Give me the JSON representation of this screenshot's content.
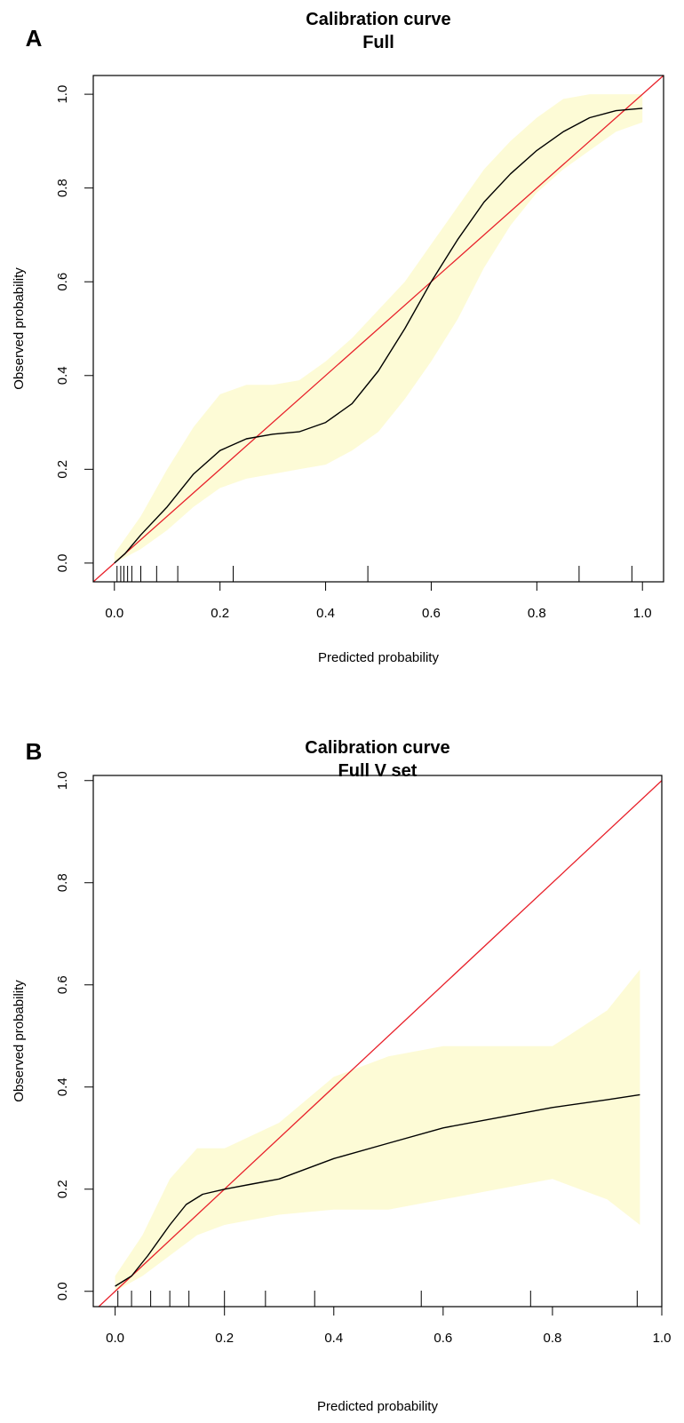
{
  "chart_data": [
    {
      "panel_label": "A",
      "type": "line",
      "title": "Calibration curve",
      "subtitle": "Full",
      "xlabel": "Predicted probability",
      "ylabel": "Observed probability",
      "xlim": [
        -0.04,
        1.04
      ],
      "ylim": [
        -0.04,
        1.04
      ],
      "x_ticks": [
        "0.0",
        "0.2",
        "0.4",
        "0.6",
        "0.8",
        "1.0"
      ],
      "y_ticks": [
        "0.0",
        "0.2",
        "0.4",
        "0.6",
        "0.8",
        "1.0"
      ],
      "grid": false,
      "colors": {
        "reference_line": "#e8202a",
        "calibration_curve": "#000000",
        "confidence_band": "#fdfbd6"
      },
      "reference_line": {
        "x": [
          -0.04,
          1.04
        ],
        "y": [
          -0.04,
          1.04
        ]
      },
      "calibration_curve": {
        "x": [
          0.0,
          0.02,
          0.05,
          0.1,
          0.15,
          0.2,
          0.25,
          0.3,
          0.35,
          0.4,
          0.45,
          0.5,
          0.55,
          0.6,
          0.65,
          0.7,
          0.75,
          0.8,
          0.85,
          0.9,
          0.95,
          1.0
        ],
        "y": [
          0.0,
          0.02,
          0.06,
          0.12,
          0.19,
          0.24,
          0.265,
          0.275,
          0.28,
          0.3,
          0.34,
          0.41,
          0.5,
          0.6,
          0.69,
          0.77,
          0.83,
          0.88,
          0.92,
          0.95,
          0.965,
          0.97
        ]
      },
      "confidence_band": {
        "x": [
          0.0,
          0.05,
          0.1,
          0.15,
          0.2,
          0.25,
          0.3,
          0.35,
          0.4,
          0.45,
          0.5,
          0.55,
          0.6,
          0.65,
          0.7,
          0.75,
          0.8,
          0.85,
          0.9,
          0.95,
          1.0
        ],
        "upper": [
          0.02,
          0.1,
          0.2,
          0.29,
          0.36,
          0.38,
          0.38,
          0.39,
          0.43,
          0.48,
          0.54,
          0.6,
          0.68,
          0.76,
          0.84,
          0.9,
          0.95,
          0.99,
          1.0,
          1.0,
          1.0
        ],
        "lower": [
          0.0,
          0.03,
          0.07,
          0.12,
          0.16,
          0.18,
          0.19,
          0.2,
          0.21,
          0.24,
          0.28,
          0.35,
          0.43,
          0.52,
          0.63,
          0.72,
          0.79,
          0.84,
          0.88,
          0.92,
          0.94
        ]
      },
      "rug_x": [
        0.005,
        0.012,
        0.018,
        0.025,
        0.033,
        0.05,
        0.08,
        0.12,
        0.225,
        0.48,
        0.88,
        0.98
      ]
    },
    {
      "panel_label": "B",
      "type": "line",
      "title": "Calibration curve",
      "subtitle": "Full V set",
      "xlabel": "Predicted probability",
      "ylabel": "Observed probability",
      "xlim": [
        -0.04,
        1.0
      ],
      "ylim": [
        -0.03,
        1.01
      ],
      "x_ticks": [
        "0.0",
        "0.2",
        "0.4",
        "0.6",
        "0.8",
        "1.0"
      ],
      "y_ticks": [
        "0.0",
        "0.2",
        "0.4",
        "0.6",
        "0.8",
        "1.0"
      ],
      "grid": false,
      "colors": {
        "reference_line": "#e8202a",
        "calibration_curve": "#000000",
        "confidence_band": "#fdfbd6"
      },
      "reference_line": {
        "x": [
          -0.04,
          1.0
        ],
        "y": [
          -0.04,
          1.0
        ]
      },
      "calibration_curve": {
        "x": [
          0.0,
          0.03,
          0.06,
          0.1,
          0.13,
          0.16,
          0.2,
          0.25,
          0.3,
          0.4,
          0.5,
          0.6,
          0.7,
          0.8,
          0.9,
          0.96
        ],
        "y": [
          0.01,
          0.03,
          0.07,
          0.13,
          0.17,
          0.19,
          0.2,
          0.21,
          0.22,
          0.26,
          0.29,
          0.32,
          0.34,
          0.36,
          0.375,
          0.385
        ]
      },
      "confidence_band": {
        "x": [
          0.0,
          0.05,
          0.1,
          0.15,
          0.2,
          0.3,
          0.4,
          0.5,
          0.6,
          0.7,
          0.8,
          0.9,
          0.96
        ],
        "upper": [
          0.03,
          0.11,
          0.22,
          0.28,
          0.28,
          0.33,
          0.42,
          0.46,
          0.48,
          0.48,
          0.48,
          0.55,
          0.63
        ],
        "lower": [
          0.0,
          0.03,
          0.07,
          0.11,
          0.13,
          0.15,
          0.16,
          0.16,
          0.18,
          0.2,
          0.22,
          0.18,
          0.13
        ]
      },
      "rug_x": [
        0.005,
        0.03,
        0.065,
        0.1,
        0.135,
        0.2,
        0.275,
        0.365,
        0.56,
        0.76,
        0.955
      ]
    }
  ]
}
